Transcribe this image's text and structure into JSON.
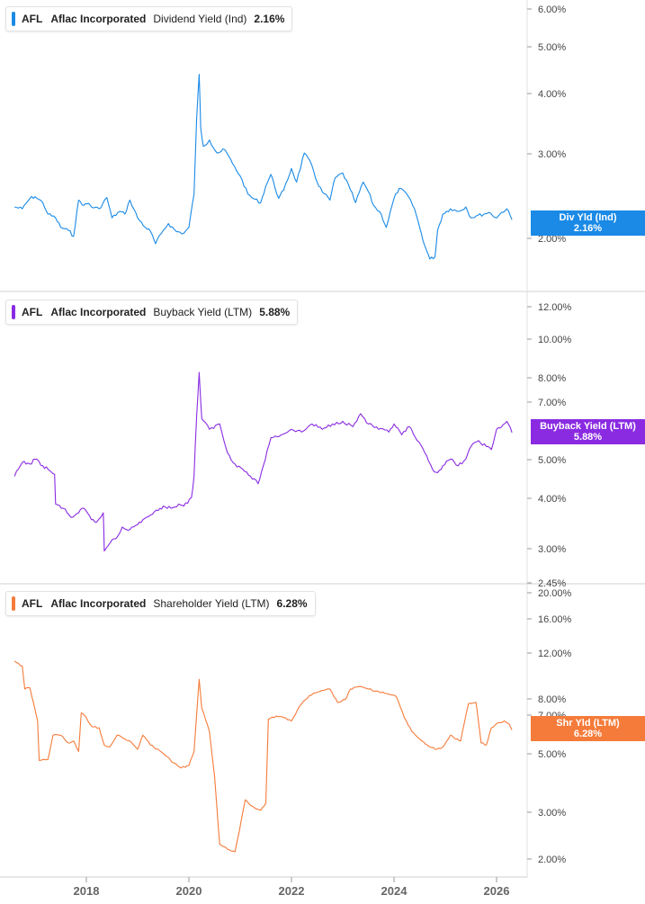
{
  "x_axis": {
    "ticks": [
      "2018",
      "2020",
      "2022",
      "2024",
      "2026"
    ]
  },
  "chart_data": [
    {
      "type": "line",
      "ticker": "AFL",
      "company": "Aflac Incorporated",
      "metric": "Dividend Yield (Ind)",
      "value_label": "2.16%",
      "tag_label": "Div Yld (Ind)",
      "tag_value": "2.16%",
      "color": "#1a8ae6",
      "y_scale": "log",
      "y_ticks": [
        "6.00%",
        "5.00%",
        "4.00%",
        "3.00%",
        "2.00%"
      ],
      "series": [
        {
          "name": "Dividend Yield (Ind)",
          "x": [
            2016.6,
            2016.75,
            2016.9,
            2017.0,
            2017.15,
            2017.25,
            2017.4,
            2017.5,
            2017.65,
            2017.75,
            2017.85,
            2017.95,
            2018.05,
            2018.1,
            2018.25,
            2018.4,
            2018.5,
            2018.65,
            2018.75,
            2018.85,
            2019.0,
            2019.15,
            2019.25,
            2019.35,
            2019.5,
            2019.6,
            2019.75,
            2019.9,
            2020.0,
            2020.1,
            2020.15,
            2020.2,
            2020.23,
            2020.28,
            2020.4,
            2020.55,
            2020.7,
            2020.85,
            2021.0,
            2021.15,
            2021.25,
            2021.4,
            2021.5,
            2021.6,
            2021.75,
            2021.85,
            2022.0,
            2022.1,
            2022.25,
            2022.4,
            2022.5,
            2022.6,
            2022.75,
            2022.85,
            2023.0,
            2023.15,
            2023.25,
            2023.4,
            2023.5,
            2023.6,
            2023.75,
            2023.85,
            2024.0,
            2024.1,
            2024.25,
            2024.4,
            2024.5,
            2024.6,
            2024.7,
            2024.8,
            2024.85,
            2024.95,
            2025.1,
            2025.25,
            2025.4,
            2025.5,
            2025.6,
            2025.75,
            2025.85,
            2026.0,
            2026.1,
            2026.2,
            2026.3
          ],
          "values": [
            2.3,
            2.28,
            2.4,
            2.42,
            2.35,
            2.22,
            2.18,
            2.08,
            2.05,
            1.99,
            2.38,
            2.32,
            2.34,
            2.3,
            2.28,
            2.41,
            2.18,
            2.25,
            2.22,
            2.38,
            2.18,
            2.08,
            2.04,
            1.92,
            2.05,
            2.12,
            2.04,
            2.02,
            2.08,
            2.45,
            3.55,
            4.42,
            3.4,
            3.1,
            3.2,
            3.0,
            3.05,
            2.85,
            2.68,
            2.45,
            2.4,
            2.35,
            2.55,
            2.7,
            2.4,
            2.5,
            2.78,
            2.6,
            3.0,
            2.82,
            2.6,
            2.48,
            2.38,
            2.65,
            2.72,
            2.5,
            2.35,
            2.6,
            2.48,
            2.32,
            2.22,
            2.08,
            2.4,
            2.52,
            2.45,
            2.28,
            2.08,
            1.9,
            1.78,
            1.8,
            2.05,
            2.22,
            2.28,
            2.25,
            2.3,
            2.18,
            2.2,
            2.22,
            2.24,
            2.18,
            2.24,
            2.28,
            2.16
          ]
        }
      ],
      "ylim": [
        1.6,
        6.1
      ]
    },
    {
      "type": "line",
      "ticker": "AFL",
      "company": "Aflac Incorporated",
      "metric": "Buyback Yield (LTM)",
      "value_label": "5.88%",
      "tag_label": "Buyback Yield (LTM)",
      "tag_value": "5.88%",
      "color": "#8a2be2",
      "y_scale": "log",
      "y_ticks": [
        "12.00%",
        "10.00%",
        "8.00%",
        "7.00%",
        "5.00%",
        "4.00%",
        "3.00%",
        "2.45%"
      ],
      "series": [
        {
          "name": "Buyback Yield (LTM)",
          "x": [
            2016.6,
            2016.75,
            2016.9,
            2017.0,
            2017.15,
            2017.25,
            2017.38,
            2017.4,
            2017.55,
            2017.7,
            2017.85,
            2017.95,
            2018.1,
            2018.2,
            2018.33,
            2018.35,
            2018.5,
            2018.6,
            2018.7,
            2018.85,
            2019.0,
            2019.1,
            2019.25,
            2019.4,
            2019.5,
            2019.65,
            2019.8,
            2019.9,
            2020.05,
            2020.1,
            2020.15,
            2020.2,
            2020.25,
            2020.4,
            2020.6,
            2020.75,
            2020.9,
            2021.05,
            2021.2,
            2021.35,
            2021.45,
            2021.6,
            2021.8,
            2022.0,
            2022.2,
            2022.4,
            2022.6,
            2022.8,
            2023.0,
            2023.2,
            2023.35,
            2023.5,
            2023.7,
            2023.9,
            2024.0,
            2024.15,
            2024.3,
            2024.45,
            2024.6,
            2024.75,
            2024.85,
            2024.95,
            2025.1,
            2025.25,
            2025.4,
            2025.5,
            2025.65,
            2025.8,
            2025.9,
            2026.0,
            2026.1,
            2026.2,
            2026.3
          ],
          "values": [
            4.5,
            4.9,
            4.85,
            5.0,
            4.8,
            4.7,
            4.55,
            3.8,
            3.7,
            3.5,
            3.6,
            3.7,
            3.45,
            3.4,
            3.6,
            2.85,
            3.05,
            3.1,
            3.3,
            3.25,
            3.35,
            3.45,
            3.55,
            3.65,
            3.75,
            3.7,
            3.8,
            3.75,
            3.95,
            4.5,
            6.5,
            8.5,
            6.4,
            6.0,
            6.2,
            5.2,
            4.85,
            4.7,
            4.5,
            4.3,
            4.8,
            5.7,
            5.8,
            6.0,
            5.9,
            6.2,
            6.0,
            6.2,
            6.3,
            6.1,
            6.6,
            6.2,
            6.0,
            5.9,
            6.2,
            5.8,
            6.1,
            5.6,
            5.2,
            4.7,
            4.6,
            4.8,
            5.0,
            4.8,
            5.0,
            5.4,
            5.6,
            5.4,
            5.3,
            6.0,
            6.1,
            6.3,
            5.88
          ]
        }
      ],
      "ylim": [
        2.45,
        13.2
      ]
    },
    {
      "type": "line",
      "ticker": "AFL",
      "company": "Aflac Incorporated",
      "metric": "Shareholder Yield (LTM)",
      "value_label": "6.28%",
      "tag_label": "Shr Yld (LTM)",
      "tag_value": "6.28%",
      "color": "#f57b3a",
      "y_scale": "log",
      "y_ticks": [
        "20.00%",
        "16.00%",
        "12.00%",
        "8.00%",
        "7.00%",
        "5.00%",
        "3.00%",
        "2.00%"
      ],
      "series": [
        {
          "name": "Shareholder Yield (LTM)",
          "x": [
            2016.6,
            2016.75,
            2016.8,
            2016.9,
            2017.05,
            2017.08,
            2017.25,
            2017.35,
            2017.5,
            2017.65,
            2017.75,
            2017.85,
            2017.9,
            2018.0,
            2018.1,
            2018.25,
            2018.35,
            2018.45,
            2018.6,
            2018.75,
            2018.85,
            2019.0,
            2019.1,
            2019.25,
            2019.4,
            2019.55,
            2019.7,
            2019.85,
            2020.0,
            2020.1,
            2020.2,
            2020.25,
            2020.4,
            2020.5,
            2020.6,
            2020.75,
            2020.9,
            2021.1,
            2021.25,
            2021.4,
            2021.5,
            2021.55,
            2021.7,
            2021.85,
            2022.0,
            2022.15,
            2022.35,
            2022.55,
            2022.75,
            2022.9,
            2023.05,
            2023.15,
            2023.3,
            2023.5,
            2023.7,
            2023.9,
            2024.05,
            2024.2,
            2024.35,
            2024.5,
            2024.65,
            2024.8,
            2024.95,
            2025.1,
            2025.2,
            2025.3,
            2025.45,
            2025.6,
            2025.7,
            2025.8,
            2025.9,
            2026.05,
            2026.15,
            2026.25,
            2026.3
          ],
          "values": [
            11.5,
            11.0,
            9.0,
            9.1,
            6.8,
            4.8,
            4.85,
            6.0,
            6.0,
            5.6,
            5.7,
            5.2,
            7.3,
            7.0,
            6.5,
            6.4,
            5.5,
            5.4,
            6.0,
            5.8,
            5.7,
            5.3,
            6.0,
            5.5,
            5.3,
            5.0,
            4.7,
            4.5,
            4.6,
            5.2,
            9.8,
            7.6,
            6.2,
            4.2,
            2.3,
            2.2,
            2.15,
            3.4,
            3.2,
            3.1,
            3.3,
            6.9,
            7.1,
            7.0,
            6.8,
            7.7,
            8.5,
            8.8,
            9.0,
            8.0,
            8.2,
            9.0,
            9.2,
            9.0,
            8.8,
            8.6,
            8.4,
            7.0,
            6.2,
            5.8,
            5.5,
            5.3,
            5.4,
            6.0,
            5.8,
            5.7,
            7.9,
            8.0,
            5.6,
            5.5,
            6.4,
            6.7,
            6.8,
            6.6,
            6.28
          ]
        }
      ],
      "ylim": [
        1.85,
        21.5
      ]
    }
  ]
}
